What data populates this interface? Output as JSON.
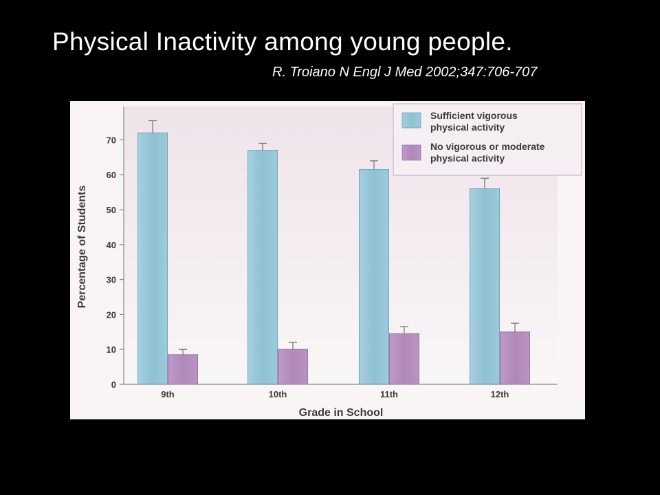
{
  "slide": {
    "title": "Physical Inactivity among young people.",
    "citation": "R. Troiano  N Engl J Med 2002;347:706-707"
  },
  "chart_data": {
    "type": "bar",
    "categories": [
      "9th",
      "10th",
      "11th",
      "12th"
    ],
    "series": [
      {
        "name": "Sufficient vigorous physical activity",
        "legend_lines": [
          "Sufficient vigorous",
          "physical activity"
        ],
        "values": [
          72,
          67,
          61.5,
          56
        ],
        "error": [
          3.5,
          2,
          2.5,
          3
        ],
        "color": "#8fc3d6"
      },
      {
        "name": "No vigorous or moderate physical activity",
        "legend_lines": [
          "No vigorous or moderate",
          "physical activity"
        ],
        "values": [
          8.5,
          10,
          14.5,
          15
        ],
        "error": [
          1.5,
          2,
          2,
          2.5
        ],
        "color": "#b48cbe"
      }
    ],
    "xlabel": "Grade in School",
    "ylabel": "Percentage of Students",
    "ylim": [
      0,
      78
    ],
    "yticks": [
      "0",
      "10",
      "20",
      "30",
      "40",
      "50",
      "60",
      "70"
    ],
    "legend_position": "top-right",
    "plot_background": "#f3e8ee",
    "grid": false
  }
}
